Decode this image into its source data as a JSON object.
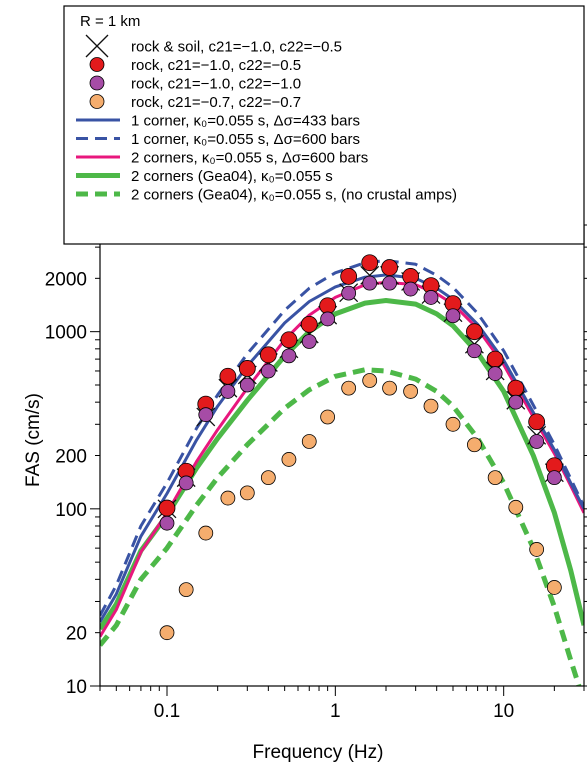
{
  "chart_data": {
    "type": "scatter",
    "title": "",
    "xlabel": "Frequency (Hz)",
    "ylabel": "FAS (cm/s)",
    "xscale": "log",
    "yscale": "log",
    "xlim": [
      0.04,
      30
    ],
    "ylim": [
      10,
      4000
    ],
    "x_ticks": [
      {
        "value": 0.1,
        "label": "0.1"
      },
      {
        "value": 1,
        "label": "1"
      },
      {
        "value": 10,
        "label": "10"
      }
    ],
    "y_ticks": [
      {
        "value": 10,
        "label": "10"
      },
      {
        "value": 20,
        "label": "20"
      },
      {
        "value": 100,
        "label": "100"
      },
      {
        "value": 200,
        "label": "200"
      },
      {
        "value": 1000,
        "label": "1000"
      },
      {
        "value": 2000,
        "label": "2000"
      }
    ],
    "grid": false,
    "legend_position": "top",
    "legend_title": "R = 1 km",
    "series": [
      {
        "name": "rock & soil, c21=−1.0, c22=−0.5",
        "kind": "points",
        "marker": "x",
        "color": "#111111",
        "x": [
          0.1,
          0.13,
          0.17,
          0.23,
          0.3,
          0.4,
          0.53,
          0.7,
          0.9,
          1.2,
          1.6,
          2.1,
          2.8,
          3.7,
          5,
          6.7,
          8.9,
          11.8,
          15.7,
          20
        ],
        "y": [
          100,
          150,
          330,
          480,
          570,
          670,
          800,
          970,
          1240,
          1660,
          2080,
          2080,
          1920,
          1620,
          1280,
          850,
          600,
          410,
          260,
          160
        ]
      },
      {
        "name": "rock, c21=−1.0, c22=−0.5",
        "kind": "points",
        "marker": "circle",
        "color": "#e31a1c",
        "x": [
          0.1,
          0.13,
          0.17,
          0.23,
          0.3,
          0.4,
          0.53,
          0.7,
          0.9,
          1.2,
          1.6,
          2.1,
          2.8,
          3.7,
          5,
          6.7,
          8.9,
          11.8,
          15.7,
          20
        ],
        "y": [
          101,
          163,
          390,
          560,
          620,
          740,
          900,
          1100,
          1400,
          2050,
          2450,
          2300,
          2050,
          1820,
          1440,
          1000,
          700,
          480,
          310,
          175
        ]
      },
      {
        "name": "rock, c21=−1.0, c22=−1.0",
        "kind": "points",
        "marker": "circle",
        "color": "#a64ca6",
        "x": [
          0.1,
          0.13,
          0.17,
          0.23,
          0.3,
          0.4,
          0.53,
          0.7,
          0.9,
          1.2,
          1.6,
          2.1,
          2.8,
          3.7,
          5,
          6.7,
          8.9,
          11.8,
          15.7,
          20
        ],
        "y": [
          83,
          140,
          340,
          460,
          500,
          600,
          730,
          880,
          1180,
          1650,
          1880,
          1880,
          1740,
          1560,
          1230,
          780,
          580,
          400,
          240,
          150
        ]
      },
      {
        "name": "rock, c21=−0.7, c22=−0.7",
        "kind": "points",
        "marker": "circle",
        "color": "#f5ad6e",
        "x": [
          0.1,
          0.13,
          0.17,
          0.23,
          0.3,
          0.4,
          0.53,
          0.7,
          0.9,
          1.2,
          1.6,
          2.1,
          2.8,
          3.7,
          5,
          6.7,
          8.9,
          11.8,
          15.7,
          20
        ],
        "y": [
          20,
          35,
          73,
          115,
          123,
          150,
          190,
          240,
          330,
          480,
          530,
          480,
          460,
          380,
          300,
          230,
          150,
          102,
          59,
          36
        ]
      },
      {
        "name": "1 corner, κ₀=0.055 s, Δσ=433 bars",
        "kind": "line",
        "color": "#3953a4",
        "dash": "solid",
        "x": [
          0.04,
          0.05,
          0.07,
          0.1,
          0.15,
          0.2,
          0.3,
          0.5,
          0.7,
          1,
          1.5,
          2,
          3,
          4,
          5,
          7,
          10,
          15,
          20,
          25,
          30
        ],
        "y": [
          23,
          33,
          70,
          122,
          245,
          380,
          640,
          1120,
          1480,
          1790,
          2030,
          2090,
          2000,
          1760,
          1520,
          1100,
          690,
          350,
          215,
          140,
          100
        ]
      },
      {
        "name": "1 corner, κ₀=0.055 s, Δσ=600 bars",
        "kind": "line",
        "color": "#3953a4",
        "dash": "dashed",
        "x": [
          0.04,
          0.05,
          0.07,
          0.1,
          0.15,
          0.2,
          0.3,
          0.5,
          0.7,
          1,
          1.5,
          2,
          3,
          4,
          5,
          7,
          10,
          15,
          20,
          25,
          30
        ],
        "y": [
          25,
          37,
          80,
          140,
          285,
          440,
          750,
          1320,
          1760,
          2150,
          2450,
          2520,
          2400,
          2080,
          1780,
          1270,
          780,
          385,
          230,
          148,
          103
        ]
      },
      {
        "name": "2 corners, κ₀=0.055 s, Δσ=600 bars",
        "kind": "line",
        "color": "#e8177d",
        "dash": "solid",
        "x": [
          0.04,
          0.05,
          0.07,
          0.1,
          0.15,
          0.2,
          0.3,
          0.5,
          0.7,
          1,
          1.5,
          2,
          3,
          4,
          5,
          7,
          10,
          15,
          20,
          25,
          30
        ],
        "y": [
          19,
          27,
          57,
          95,
          185,
          280,
          480,
          900,
          1240,
          1560,
          1840,
          1900,
          1840,
          1640,
          1430,
          1040,
          650,
          330,
          205,
          135,
          95
        ]
      },
      {
        "name": "2 corners (Gea04), κ₀=0.055 s",
        "kind": "line",
        "color": "#4db848",
        "dash": "solid",
        "x": [
          0.04,
          0.05,
          0.07,
          0.1,
          0.15,
          0.2,
          0.3,
          0.5,
          0.7,
          1,
          1.5,
          2,
          3,
          4,
          5,
          7,
          10,
          15,
          20,
          25,
          30
        ],
        "y": [
          21,
          29,
          58,
          92,
          170,
          250,
          410,
          730,
          1000,
          1260,
          1450,
          1500,
          1430,
          1260,
          1080,
          760,
          460,
          200,
          95,
          45,
          22
        ]
      },
      {
        "name": "2 corners (Gea04), κ₀=0.055 s, (no crustal amps)",
        "kind": "line",
        "color": "#4db848",
        "dash": "dashed",
        "x": [
          0.04,
          0.05,
          0.07,
          0.1,
          0.15,
          0.2,
          0.3,
          0.5,
          0.7,
          1,
          1.5,
          2,
          3,
          4,
          5,
          7,
          10,
          15,
          20,
          25,
          28
        ],
        "y": [
          17,
          22,
          40,
          60,
          105,
          150,
          230,
          370,
          470,
          560,
          610,
          600,
          540,
          460,
          380,
          250,
          140,
          60,
          28,
          14,
          10
        ]
      }
    ]
  }
}
